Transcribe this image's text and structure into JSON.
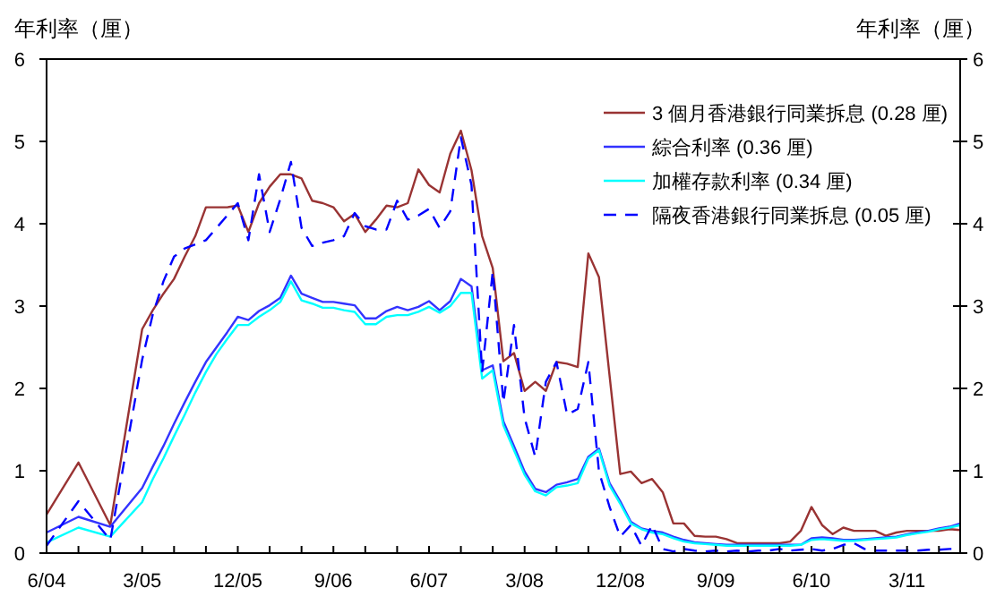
{
  "chart_data": {
    "type": "line",
    "ylabel": "年利率（厘）",
    "y2label": "年利率（厘）",
    "x": [
      "2004-06",
      "2004-09",
      "2004-12",
      "2005-03",
      "2005-04",
      "2005-05",
      "2005-06",
      "2005-07",
      "2005-08",
      "2005-09",
      "2005-10",
      "2005-11",
      "2005-12",
      "2006-01",
      "2006-02",
      "2006-03",
      "2006-04",
      "2006-05",
      "2006-06",
      "2006-07",
      "2006-08",
      "2006-09",
      "2006-10",
      "2006-11",
      "2006-12",
      "2007-01",
      "2007-02",
      "2007-03",
      "2007-04",
      "2007-05",
      "2007-06",
      "2007-07",
      "2007-08",
      "2007-09",
      "2007-10",
      "2007-11",
      "2007-12",
      "2008-01",
      "2008-02",
      "2008-03",
      "2008-04",
      "2008-05",
      "2008-06",
      "2008-07",
      "2008-08",
      "2008-09",
      "2008-10",
      "2008-11",
      "2008-12",
      "2009-01",
      "2009-02",
      "2009-03",
      "2009-04",
      "2009-05",
      "2009-06",
      "2009-07",
      "2009-08",
      "2009-09",
      "2009-10",
      "2009-11",
      "2009-12",
      "2010-01",
      "2010-02",
      "2010-03",
      "2010-04",
      "2010-05",
      "2010-06",
      "2010-07",
      "2010-08",
      "2010-09",
      "2010-10",
      "2010-11",
      "2010-12",
      "2011-01",
      "2011-02",
      "2011-03",
      "2011-04",
      "2011-05",
      "2011-06",
      "2011-07",
      "2011-08"
    ],
    "series": [
      {
        "name": "3 個月香港銀行同業拆息 (0.28 厘)",
        "color": "#993333",
        "line_style": "solid",
        "values": [
          0.47,
          1.1,
          0.34,
          2.72,
          2.95,
          3.15,
          3.33,
          3.6,
          3.85,
          4.2,
          4.2,
          4.2,
          4.22,
          3.9,
          4.25,
          4.45,
          4.6,
          4.6,
          4.55,
          4.28,
          4.25,
          4.2,
          4.03,
          4.12,
          3.9,
          4.05,
          4.22,
          4.2,
          4.25,
          4.66,
          4.47,
          4.38,
          4.85,
          5.13,
          4.65,
          3.85,
          3.46,
          2.33,
          2.43,
          1.97,
          2.08,
          1.97,
          2.32,
          2.3,
          2.26,
          3.64,
          3.35,
          2.15,
          0.96,
          0.99,
          0.85,
          0.9,
          0.74,
          0.36,
          0.36,
          0.21,
          0.2,
          0.2,
          0.17,
          0.12,
          0.12,
          0.12,
          0.12,
          0.12,
          0.14,
          0.27,
          0.56,
          0.34,
          0.23,
          0.31,
          0.27,
          0.27,
          0.27,
          0.21,
          0.25,
          0.27,
          0.27,
          0.27,
          0.27,
          0.29,
          0.28
        ]
      },
      {
        "name": "綜合利率 (0.36 厘)",
        "color": "#3333ff",
        "line_style": "solid",
        "values": [
          0.25,
          0.44,
          0.32,
          0.79,
          1.05,
          1.3,
          1.57,
          1.83,
          2.08,
          2.32,
          2.5,
          2.68,
          2.87,
          2.83,
          2.94,
          3.01,
          3.1,
          3.37,
          3.15,
          3.1,
          3.05,
          3.05,
          3.03,
          3.01,
          2.85,
          2.85,
          2.94,
          2.99,
          2.95,
          2.99,
          3.06,
          2.95,
          3.06,
          3.33,
          3.24,
          2.22,
          2.28,
          1.6,
          1.3,
          0.99,
          0.78,
          0.74,
          0.83,
          0.86,
          0.9,
          1.17,
          1.27,
          0.85,
          0.63,
          0.38,
          0.3,
          0.27,
          0.25,
          0.2,
          0.16,
          0.13,
          0.12,
          0.11,
          0.1,
          0.1,
          0.1,
          0.1,
          0.1,
          0.1,
          0.1,
          0.1,
          0.18,
          0.19,
          0.18,
          0.16,
          0.16,
          0.17,
          0.18,
          0.19,
          0.2,
          0.23,
          0.25,
          0.27,
          0.3,
          0.32,
          0.36
        ]
      },
      {
        "name": "加權存款利率 (0.34 厘)",
        "color": "#00ffff",
        "line_style": "solid",
        "values": [
          0.13,
          0.31,
          0.2,
          0.62,
          0.9,
          1.15,
          1.42,
          1.68,
          1.95,
          2.2,
          2.42,
          2.6,
          2.77,
          2.77,
          2.87,
          2.95,
          3.05,
          3.3,
          3.07,
          3.03,
          2.98,
          2.98,
          2.95,
          2.93,
          2.78,
          2.78,
          2.87,
          2.89,
          2.89,
          2.93,
          2.99,
          2.92,
          3.0,
          3.16,
          3.16,
          2.12,
          2.22,
          1.55,
          1.25,
          0.95,
          0.75,
          0.7,
          0.8,
          0.82,
          0.85,
          1.15,
          1.25,
          0.82,
          0.6,
          0.36,
          0.29,
          0.25,
          0.23,
          0.18,
          0.14,
          0.12,
          0.11,
          0.1,
          0.09,
          0.09,
          0.09,
          0.09,
          0.09,
          0.09,
          0.09,
          0.1,
          0.16,
          0.17,
          0.16,
          0.15,
          0.15,
          0.16,
          0.17,
          0.18,
          0.19,
          0.22,
          0.24,
          0.26,
          0.29,
          0.31,
          0.34
        ]
      },
      {
        "name": "隔夜香港銀行同業拆息 (0.05 厘)",
        "color": "#0000ff",
        "line_style": "dashed",
        "values": [
          0.09,
          0.63,
          0.16,
          2.35,
          2.9,
          3.3,
          3.6,
          3.7,
          3.75,
          3.8,
          3.95,
          4.1,
          4.25,
          3.8,
          4.6,
          3.9,
          4.3,
          4.75,
          3.95,
          3.73,
          3.77,
          3.8,
          3.85,
          4.13,
          3.97,
          3.93,
          3.93,
          4.28,
          4.05,
          4.1,
          4.18,
          3.95,
          4.15,
          5.05,
          4.47,
          2.2,
          3.42,
          1.83,
          2.77,
          1.64,
          1.17,
          2.08,
          2.32,
          1.68,
          1.75,
          2.32,
          0.99,
          0.56,
          0.2,
          0.34,
          0.09,
          0.34,
          0.05,
          0.02,
          0.05,
          0.03,
          0.02,
          0.03,
          0.02,
          0.03,
          0.02,
          0.03,
          0.03,
          0.05,
          0.03,
          0.04,
          0.05,
          0.03,
          0.05,
          0.1,
          0.12,
          0.05,
          0.03,
          0.03,
          0.03,
          0.03,
          0.03,
          0.04,
          0.04,
          0.05,
          0.05
        ]
      }
    ],
    "xlim": [
      "2004-06",
      "2011-08"
    ],
    "xticks": [
      {
        "value": "2004-06",
        "label": "6/04"
      },
      {
        "value": "2004-09",
        "label": null
      },
      {
        "value": "2004-12",
        "label": null
      },
      {
        "value": "2005-03",
        "label": "3/05"
      },
      {
        "value": "2005-06",
        "label": null
      },
      {
        "value": "2005-09",
        "label": null
      },
      {
        "value": "2005-12",
        "label": "12/05"
      },
      {
        "value": "2006-03",
        "label": null
      },
      {
        "value": "2006-06",
        "label": null
      },
      {
        "value": "2006-09",
        "label": "9/06"
      },
      {
        "value": "2006-12",
        "label": null
      },
      {
        "value": "2007-03",
        "label": null
      },
      {
        "value": "2007-06",
        "label": "6/07"
      },
      {
        "value": "2007-09",
        "label": null
      },
      {
        "value": "2007-12",
        "label": null
      },
      {
        "value": "2008-03",
        "label": "3/08"
      },
      {
        "value": "2008-06",
        "label": null
      },
      {
        "value": "2008-09",
        "label": null
      },
      {
        "value": "2008-12",
        "label": "12/08"
      },
      {
        "value": "2009-03",
        "label": null
      },
      {
        "value": "2009-06",
        "label": null
      },
      {
        "value": "2009-09",
        "label": "9/09"
      },
      {
        "value": "2009-12",
        "label": null
      },
      {
        "value": "2010-03",
        "label": null
      },
      {
        "value": "2010-06",
        "label": "6/10"
      },
      {
        "value": "2010-09",
        "label": null
      },
      {
        "value": "2010-12",
        "label": null
      },
      {
        "value": "2011-03",
        "label": "3/11"
      },
      {
        "value": "2011-06",
        "label": null
      }
    ],
    "ylim": [
      0,
      6
    ],
    "yticks": [
      0,
      1,
      2,
      3,
      4,
      5,
      6
    ],
    "y2lim": [
      0,
      6
    ],
    "y2ticks": [
      0,
      1,
      2,
      3,
      4,
      5,
      6
    ],
    "legend": "top right"
  }
}
